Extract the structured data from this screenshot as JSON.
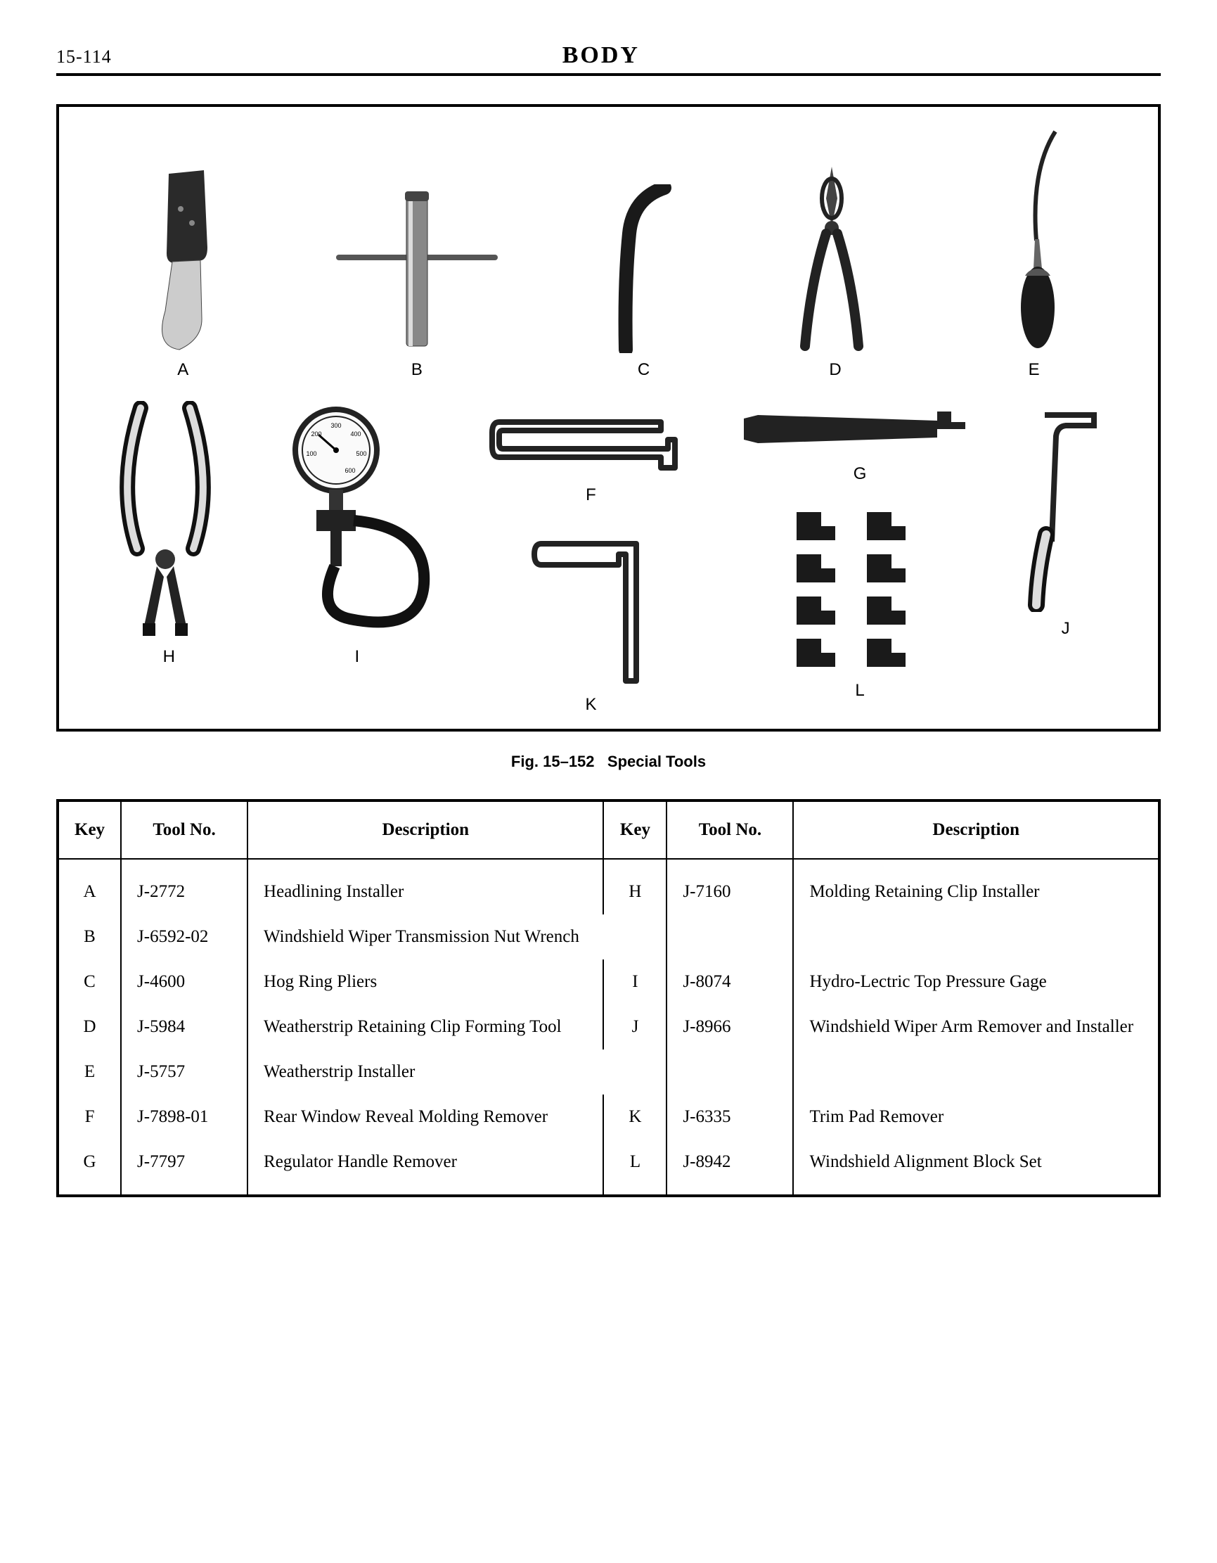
{
  "header": {
    "page_number": "15-114",
    "section_title": "BODY"
  },
  "figure": {
    "caption_prefix": "Fig. 15–152",
    "caption_title": "Special Tools",
    "tool_labels": {
      "A": "A",
      "B": "B",
      "C": "C",
      "D": "D",
      "E": "E",
      "F": "F",
      "G": "G",
      "H": "H",
      "I": "I",
      "J": "J",
      "K": "K",
      "L": "L"
    },
    "gauge_ticks": [
      "100",
      "200",
      "300",
      "400",
      "500",
      "600"
    ]
  },
  "table": {
    "headers": {
      "key": "Key",
      "tool_no": "Tool No.",
      "description": "Description"
    },
    "left": [
      {
        "key": "A",
        "tool_no": "J-2772",
        "description": "Headlining Installer"
      },
      {
        "key": "B",
        "tool_no": "J-6592-02",
        "description": "Windshield Wiper Transmission Nut Wrench"
      },
      {
        "key": "C",
        "tool_no": "J-4600",
        "description": "Hog Ring Pliers"
      },
      {
        "key": "D",
        "tool_no": "J-5984",
        "description": "Weatherstrip Retaining Clip Forming Tool"
      },
      {
        "key": "E",
        "tool_no": "J-5757",
        "description": "Weatherstrip Installer"
      },
      {
        "key": "F",
        "tool_no": "J-7898-01",
        "description": "Rear Window Reveal Molding Remover"
      },
      {
        "key": "G",
        "tool_no": "J-7797",
        "description": "Regulator Handle Remover"
      }
    ],
    "right": [
      {
        "key": "H",
        "tool_no": "J-7160",
        "description": "Molding Retaining Clip Installer"
      },
      {
        "key": "I",
        "tool_no": "J-8074",
        "description": "Hydro-Lectric Top Pressure Gage"
      },
      {
        "key": "J",
        "tool_no": "J-8966",
        "description": "Windshield Wiper Arm Remover and Installer"
      },
      {
        "key": "K",
        "tool_no": "J-6335",
        "description": "Trim Pad Remover"
      },
      {
        "key": "L",
        "tool_no": "J-8942",
        "description": "Windshield Alignment Block Set"
      }
    ]
  }
}
